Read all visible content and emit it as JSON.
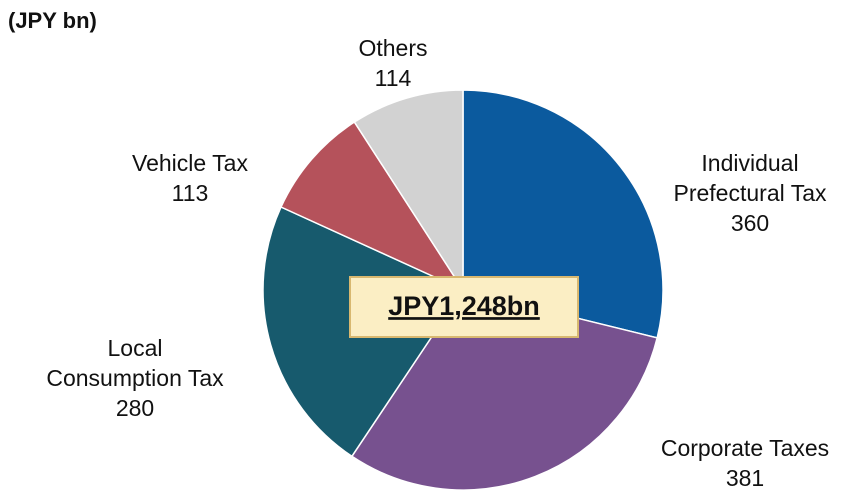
{
  "chart_data": {
    "type": "pie",
    "subtitle": "(JPY bn)",
    "center_label": "JPY1,248bn",
    "categories": [
      [
        "Individual",
        "Prefectural Tax"
      ],
      [
        "Corporate Taxes"
      ],
      [
        "Local",
        "Consumption Tax"
      ],
      [
        "Vehicle Tax"
      ],
      [
        "Others"
      ]
    ],
    "values": [
      360,
      381,
      280,
      113,
      114
    ],
    "colors": [
      "#0b5a9e",
      "#77518f",
      "#175a6d",
      "#b5525b",
      "#d2d2d2"
    ]
  }
}
